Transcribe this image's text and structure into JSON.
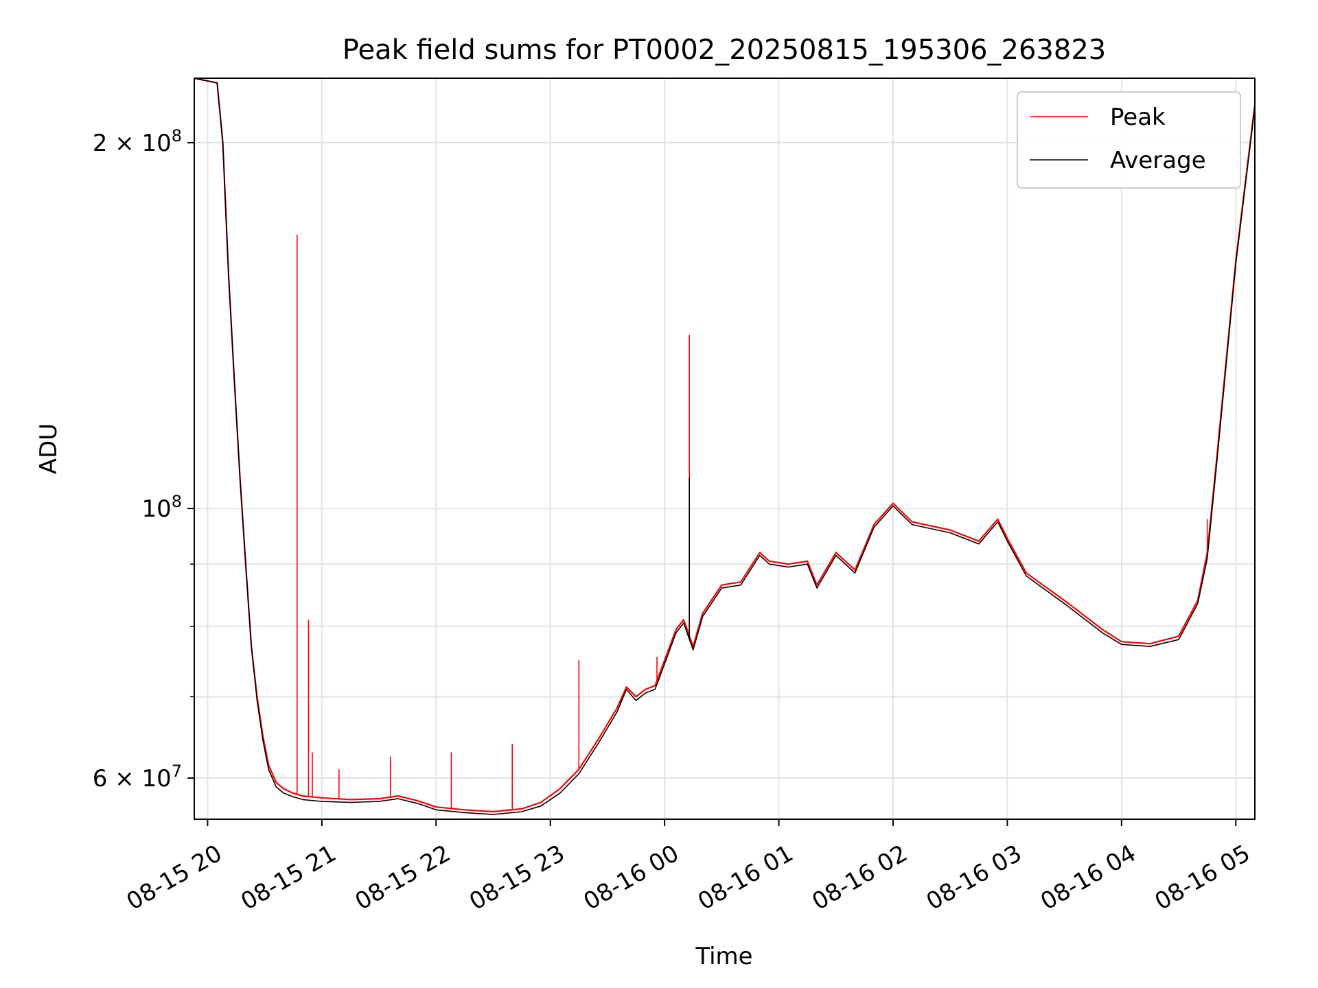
{
  "chart_data": {
    "type": "line",
    "title": "Peak field sums for PT0002_20250815_195306_263823",
    "xlabel": "Time",
    "ylabel": "ADU",
    "x_range": [
      "2025-08-15 19:53",
      "2025-08-16 05:10"
    ],
    "ylim": [
      55500000,
      226000000
    ],
    "y_scale": "log",
    "grid": true,
    "legend_position": "upper right",
    "x_ticks": [
      "08-15 20",
      "08-15 21",
      "08-15 22",
      "08-15 23",
      "08-16 00",
      "08-16 01",
      "08-16 02",
      "08-16 03",
      "08-16 04",
      "08-16 05"
    ],
    "y_ticks": [
      {
        "value": 60000000,
        "mantissa": "6",
        "exponent": "7"
      },
      {
        "value": 100000000,
        "mantissa": "",
        "exponent": "8"
      },
      {
        "value": 200000000,
        "mantissa": "2",
        "exponent": "8"
      }
    ],
    "y_minor_ticks": [
      70000000,
      80000000,
      90000000
    ],
    "series": [
      {
        "name": "Peak",
        "color": "#ff0000",
        "points": [
          [
            "2025-08-15 19:53",
            226000000
          ],
          [
            "2025-08-15 20:05",
            224000000
          ],
          [
            "2025-08-15 20:08",
            200000000
          ],
          [
            "2025-08-15 20:11",
            156000000
          ],
          [
            "2025-08-15 20:14",
            128000000
          ],
          [
            "2025-08-15 20:17",
            106000000
          ],
          [
            "2025-08-15 20:20",
            90000000
          ],
          [
            "2025-08-15 20:23",
            77000000
          ],
          [
            "2025-08-15 20:26",
            70000000
          ],
          [
            "2025-08-15 20:29",
            65000000
          ],
          [
            "2025-08-15 20:32",
            61500000
          ],
          [
            "2025-08-15 20:36",
            59500000
          ],
          [
            "2025-08-15 20:40",
            58800000
          ],
          [
            "2025-08-15 20:45",
            58300000
          ],
          [
            "2025-08-15 20:50",
            58000000
          ],
          [
            "2025-08-15 21:00",
            57800000
          ],
          [
            "2025-08-15 21:15",
            57600000
          ],
          [
            "2025-08-15 21:30",
            57700000
          ],
          [
            "2025-08-15 21:40",
            58000000
          ],
          [
            "2025-08-15 21:50",
            57500000
          ],
          [
            "2025-08-15 22:00",
            56800000
          ],
          [
            "2025-08-15 22:15",
            56500000
          ],
          [
            "2025-08-15 22:30",
            56300000
          ],
          [
            "2025-08-15 22:45",
            56600000
          ],
          [
            "2025-08-15 22:55",
            57300000
          ],
          [
            "2025-08-15 23:05",
            58800000
          ],
          [
            "2025-08-15 23:15",
            61000000
          ],
          [
            "2025-08-15 23:25",
            64500000
          ],
          [
            "2025-08-15 23:35",
            68500000
          ],
          [
            "2025-08-15 23:40",
            71300000
          ],
          [
            "2025-08-15 23:45",
            70000000
          ],
          [
            "2025-08-15 23:50",
            71000000
          ],
          [
            "2025-08-15 23:55",
            71500000
          ],
          [
            "2025-08-16 00:00",
            75000000
          ],
          [
            "2025-08-16 00:06",
            79500000
          ],
          [
            "2025-08-16 00:10",
            81000000
          ],
          [
            "2025-08-16 00:15",
            77000000
          ],
          [
            "2025-08-16 00:20",
            82000000
          ],
          [
            "2025-08-16 00:30",
            86500000
          ],
          [
            "2025-08-16 00:40",
            87000000
          ],
          [
            "2025-08-16 00:50",
            92000000
          ],
          [
            "2025-08-16 00:55",
            90500000
          ],
          [
            "2025-08-16 01:05",
            90000000
          ],
          [
            "2025-08-16 01:15",
            90500000
          ],
          [
            "2025-08-16 01:20",
            86500000
          ],
          [
            "2025-08-16 01:30",
            92000000
          ],
          [
            "2025-08-16 01:40",
            89000000
          ],
          [
            "2025-08-16 01:50",
            97000000
          ],
          [
            "2025-08-16 02:00",
            101000000
          ],
          [
            "2025-08-16 02:10",
            97500000
          ],
          [
            "2025-08-16 02:30",
            96000000
          ],
          [
            "2025-08-16 02:45",
            94000000
          ],
          [
            "2025-08-16 02:55",
            98000000
          ],
          [
            "2025-08-16 03:00",
            94500000
          ],
          [
            "2025-08-16 03:10",
            88500000
          ],
          [
            "2025-08-16 03:30",
            84000000
          ],
          [
            "2025-08-16 03:50",
            79500000
          ],
          [
            "2025-08-16 04:00",
            77700000
          ],
          [
            "2025-08-16 04:15",
            77400000
          ],
          [
            "2025-08-16 04:30",
            78500000
          ],
          [
            "2025-08-16 04:40",
            84000000
          ],
          [
            "2025-08-16 04:45",
            92000000
          ],
          [
            "2025-08-16 04:50",
            110000000
          ],
          [
            "2025-08-16 05:00",
            160000000
          ],
          [
            "2025-08-16 05:10",
            215000000
          ]
        ]
      },
      {
        "name": "Average",
        "color": "#000000",
        "points": [
          [
            "2025-08-15 19:53",
            226000000
          ],
          [
            "2025-08-15 20:05",
            224000000
          ],
          [
            "2025-08-15 20:08",
            200000000
          ],
          [
            "2025-08-15 20:11",
            156000000
          ],
          [
            "2025-08-15 20:14",
            128000000
          ],
          [
            "2025-08-15 20:17",
            106000000
          ],
          [
            "2025-08-15 20:20",
            90000000
          ],
          [
            "2025-08-15 20:23",
            77000000
          ],
          [
            "2025-08-15 20:26",
            69500000
          ],
          [
            "2025-08-15 20:29",
            64500000
          ],
          [
            "2025-08-15 20:32",
            61000000
          ],
          [
            "2025-08-15 20:36",
            59000000
          ],
          [
            "2025-08-15 20:40",
            58300000
          ],
          [
            "2025-08-15 20:45",
            57900000
          ],
          [
            "2025-08-15 20:50",
            57600000
          ],
          [
            "2025-08-15 21:00",
            57400000
          ],
          [
            "2025-08-15 21:15",
            57300000
          ],
          [
            "2025-08-15 21:30",
            57400000
          ],
          [
            "2025-08-15 21:40",
            57700000
          ],
          [
            "2025-08-15 21:50",
            57200000
          ],
          [
            "2025-08-15 22:00",
            56500000
          ],
          [
            "2025-08-15 22:15",
            56200000
          ],
          [
            "2025-08-15 22:30",
            56000000
          ],
          [
            "2025-08-15 22:45",
            56300000
          ],
          [
            "2025-08-15 22:55",
            56900000
          ],
          [
            "2025-08-15 23:05",
            58300000
          ],
          [
            "2025-08-15 23:15",
            60500000
          ],
          [
            "2025-08-15 23:25",
            64000000
          ],
          [
            "2025-08-15 23:35",
            68000000
          ],
          [
            "2025-08-15 23:40",
            71000000
          ],
          [
            "2025-08-15 23:45",
            69500000
          ],
          [
            "2025-08-15 23:50",
            70500000
          ],
          [
            "2025-08-15 23:55",
            71000000
          ],
          [
            "2025-08-16 00:00",
            74500000
          ],
          [
            "2025-08-16 00:06",
            79000000
          ],
          [
            "2025-08-16 00:10",
            80500000
          ],
          [
            "2025-08-16 00:15",
            76500000
          ],
          [
            "2025-08-16 00:20",
            81500000
          ],
          [
            "2025-08-16 00:30",
            86000000
          ],
          [
            "2025-08-16 00:40",
            86500000
          ],
          [
            "2025-08-16 00:50",
            91500000
          ],
          [
            "2025-08-16 00:55",
            90000000
          ],
          [
            "2025-08-16 01:05",
            89500000
          ],
          [
            "2025-08-16 01:15",
            90000000
          ],
          [
            "2025-08-16 01:20",
            86000000
          ],
          [
            "2025-08-16 01:30",
            91500000
          ],
          [
            "2025-08-16 01:40",
            88500000
          ],
          [
            "2025-08-16 01:50",
            96500000
          ],
          [
            "2025-08-16 02:00",
            100500000
          ],
          [
            "2025-08-16 02:10",
            97000000
          ],
          [
            "2025-08-16 02:30",
            95500000
          ],
          [
            "2025-08-16 02:45",
            93500000
          ],
          [
            "2025-08-16 02:55",
            97500000
          ],
          [
            "2025-08-16 03:00",
            94000000
          ],
          [
            "2025-08-16 03:10",
            88000000
          ],
          [
            "2025-08-16 03:30",
            83500000
          ],
          [
            "2025-08-16 03:50",
            79000000
          ],
          [
            "2025-08-16 04:00",
            77300000
          ],
          [
            "2025-08-16 04:15",
            77000000
          ],
          [
            "2025-08-16 04:30",
            78000000
          ],
          [
            "2025-08-16 04:40",
            83500000
          ],
          [
            "2025-08-16 04:45",
            91000000
          ],
          [
            "2025-08-16 04:50",
            109000000
          ],
          [
            "2025-08-16 05:00",
            159000000
          ],
          [
            "2025-08-16 05:10",
            214000000
          ]
        ]
      }
    ],
    "spikes": [
      {
        "series": "Peak",
        "time": "2025-08-15 20:47",
        "value": 168000000
      },
      {
        "series": "Peak",
        "time": "2025-08-15 20:53",
        "value": 81000000
      },
      {
        "series": "Peak",
        "time": "2025-08-15 20:55",
        "value": 63000000
      },
      {
        "series": "Peak",
        "time": "2025-08-15 21:09",
        "value": 61000000
      },
      {
        "series": "Peak",
        "time": "2025-08-15 21:36",
        "value": 62500000
      },
      {
        "series": "Peak",
        "time": "2025-08-15 22:08",
        "value": 63000000
      },
      {
        "series": "Peak",
        "time": "2025-08-15 22:40",
        "value": 64000000
      },
      {
        "series": "Peak",
        "time": "2025-08-15 23:15",
        "value": 75000000
      },
      {
        "series": "Peak",
        "time": "2025-08-15 23:56",
        "value": 75500000
      },
      {
        "series": "Peak",
        "time": "2025-08-16 00:13",
        "value": 139000000
      },
      {
        "series": "Average",
        "time": "2025-08-16 00:13",
        "value": 106000000
      },
      {
        "series": "Peak",
        "time": "2025-08-16 04:45",
        "value": 98000000
      }
    ]
  }
}
